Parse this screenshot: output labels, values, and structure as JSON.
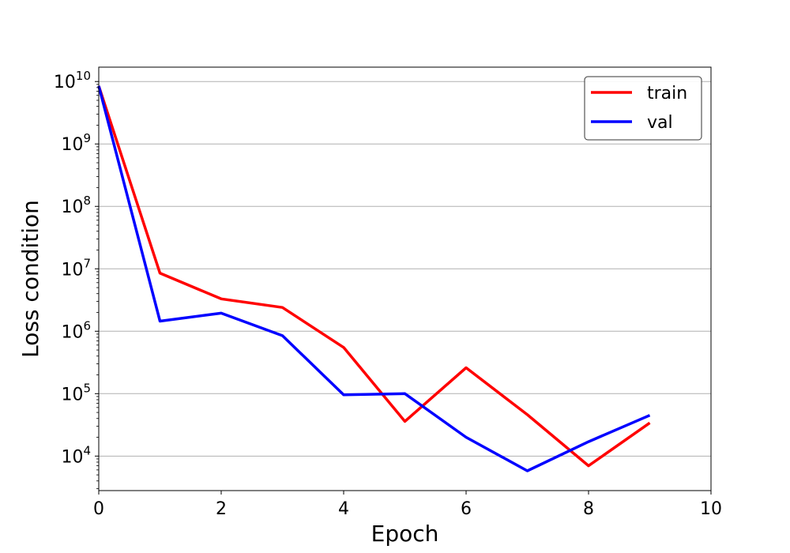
{
  "chart_data": {
    "type": "line",
    "xlabel": "Epoch",
    "ylabel": "Loss condition",
    "xlim": [
      0,
      10
    ],
    "ylim": [
      2800,
      17000000000
    ],
    "yscale": "log",
    "grid": "y-major",
    "legend_position": "top-right",
    "x_ticks": [
      0,
      2,
      4,
      6,
      8,
      10
    ],
    "x_tick_labels": [
      "0",
      "2",
      "4",
      "6",
      "8",
      "10"
    ],
    "y_ticks": [
      10000,
      100000,
      1000000,
      10000000,
      100000000,
      1000000000,
      10000000000
    ],
    "y_tick_labels": [
      {
        "base": "10",
        "exp": "4"
      },
      {
        "base": "10",
        "exp": "5"
      },
      {
        "base": "10",
        "exp": "6"
      },
      {
        "base": "10",
        "exp": "7"
      },
      {
        "base": "10",
        "exp": "8"
      },
      {
        "base": "10",
        "exp": "9"
      },
      {
        "base": "10",
        "exp": "10"
      }
    ],
    "x": [
      0,
      1,
      2,
      3,
      4,
      5,
      6,
      7,
      8,
      9
    ],
    "series": [
      {
        "name": "train",
        "color": "#ff0000",
        "values": [
          8500000000,
          8500000,
          3300000,
          2400000,
          550000,
          36000,
          260000,
          46000,
          7000,
          34000
        ]
      },
      {
        "name": "val",
        "color": "#0000ff",
        "values": [
          8500000000,
          1450000,
          1950000,
          850000,
          96000,
          100000,
          20000,
          5800,
          17000,
          45000
        ]
      }
    ]
  }
}
